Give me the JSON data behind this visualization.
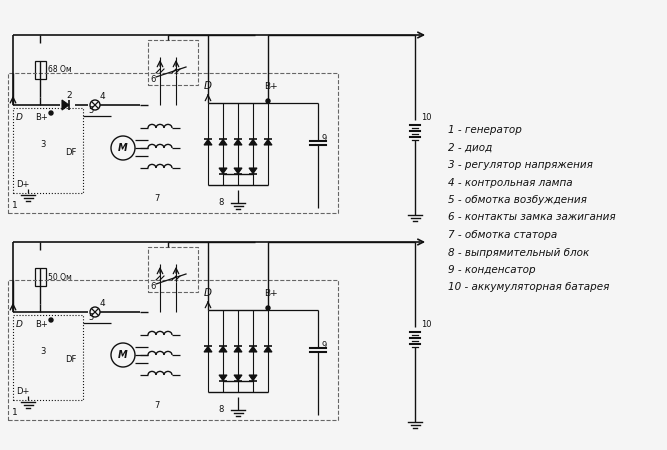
{
  "legend_items": [
    "1 - генератор",
    "2 - диод",
    "3 - регулятор напряжения",
    "4 - контрольная лампа",
    "5 - обмотка возбуждения",
    "6 - контакты замка зажигания",
    "7 - обмотка статора",
    "8 - выпрямительный блок",
    "9 - конденсатор",
    "10 - аккумуляторная батарея"
  ],
  "bg_color": "#f5f5f5",
  "line_color": "#111111",
  "dash_color": "#555555",
  "text_color": "#111111",
  "font_size": 6.5,
  "legend_font_size": 7.5,
  "fig_width": 6.67,
  "fig_height": 4.5
}
